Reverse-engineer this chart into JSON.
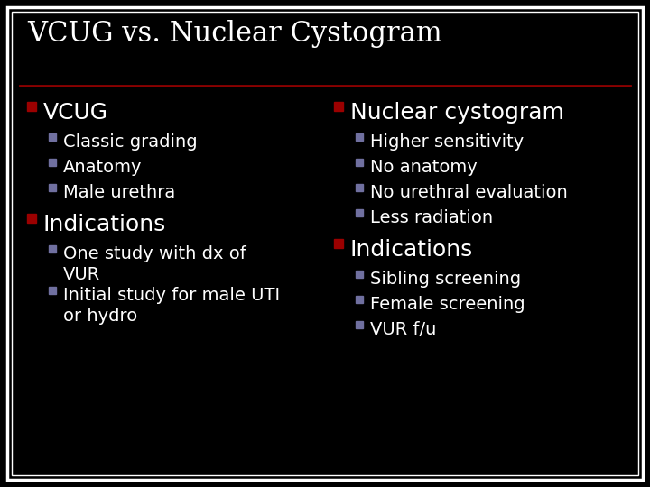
{
  "title": "VCUG vs. Nuclear Cystogram",
  "background_color": "#000000",
  "border_color_outer": "#ffffff",
  "border_color_inner": "#ffffff",
  "title_color": "#ffffff",
  "title_fontsize": 22,
  "separator_color": "#8b0000",
  "red_bullet": "#9b0000",
  "blue_bullet": "#7070a0",
  "left_column": {
    "header": "VCUG",
    "sub_items_1": [
      "Classic grading",
      "Anatomy",
      "Male urethra"
    ],
    "section2_header": "Indications",
    "sub_items_2": [
      "One study with dx of\nVUR",
      "Initial study for male UTI\nor hydro"
    ]
  },
  "right_column": {
    "header": "Nuclear cystogram",
    "sub_items_1": [
      "Higher sensitivity",
      "No anatomy",
      "No urethral evaluation",
      "Less radiation"
    ],
    "section2_header": "Indications",
    "sub_items_2": [
      "Sibling screening",
      "Female screening",
      "VUR f/u"
    ]
  },
  "text_color": "#ffffff",
  "header_fontsize": 18,
  "sub_fontsize": 14
}
